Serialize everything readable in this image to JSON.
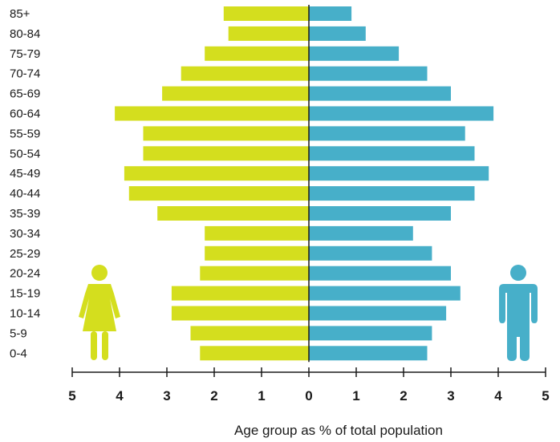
{
  "chart_data": {
    "type": "bar",
    "orientation": "horizontal-diverging",
    "title": "",
    "xlabel": "Age group as % of total population",
    "ylabel": "",
    "xlim": [
      -5,
      5
    ],
    "xticks": [
      -5,
      -4,
      -3,
      -2,
      -1,
      0,
      1,
      2,
      3,
      4,
      5
    ],
    "xtick_labels": [
      "5",
      "4",
      "3",
      "2",
      "1",
      "0",
      "1",
      "2",
      "3",
      "4",
      "5"
    ],
    "categories": [
      "85+",
      "80-84",
      "75-79",
      "70-74",
      "65-69",
      "60-64",
      "55-59",
      "50-54",
      "45-49",
      "40-44",
      "35-39",
      "30-34",
      "25-29",
      "20-24",
      "15-19",
      "10-14",
      "5-9",
      "0-4"
    ],
    "series": [
      {
        "side": "left",
        "color": "#d4de1e",
        "icon": "female-figure-icon",
        "values": [
          1.8,
          1.7,
          2.2,
          2.7,
          3.1,
          4.1,
          3.5,
          3.5,
          3.9,
          3.8,
          3.2,
          2.2,
          2.2,
          2.3,
          2.9,
          2.9,
          2.5,
          2.3
        ]
      },
      {
        "side": "right",
        "color": "#47afc9",
        "icon": "male-figure-icon",
        "values": [
          0.9,
          1.2,
          1.9,
          2.5,
          3.0,
          3.9,
          3.3,
          3.5,
          3.8,
          3.5,
          3.0,
          2.2,
          2.6,
          3.0,
          3.2,
          2.9,
          2.6,
          2.5
        ]
      }
    ],
    "grid": false,
    "legend": "none"
  }
}
